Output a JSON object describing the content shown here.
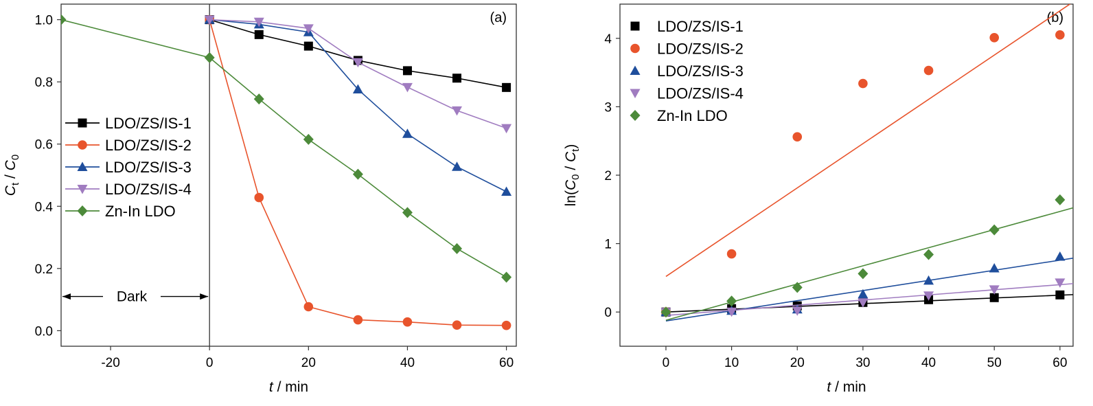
{
  "chart_data": [
    {
      "type": "line",
      "panel_label": "(a)",
      "xlabel": {
        "italic": "t",
        "rest": " / min"
      },
      "ylabel": {
        "text": "C",
        "sub1": "t",
        "mid": " / ",
        "text2": "C",
        "sub2": "0"
      },
      "xlim": [
        -30,
        62
      ],
      "ylim": [
        -0.05,
        1.05
      ],
      "xticks": [
        -20,
        0,
        20,
        40,
        60
      ],
      "yticks": [
        "0.0",
        "0.2",
        "0.4",
        "0.6",
        "0.8",
        "1.0"
      ],
      "legend_position": "center-left",
      "annotation": "Dark",
      "dark_range": [
        -30,
        0
      ],
      "series": [
        {
          "name": "LDO/ZS/IS-1",
          "color": "#000000",
          "marker": "square",
          "x": [
            0,
            10,
            20,
            30,
            40,
            50,
            60
          ],
          "y": [
            1.0,
            0.952,
            0.915,
            0.869,
            0.836,
            0.812,
            0.782
          ]
        },
        {
          "name": "LDO/ZS/IS-2",
          "color": "#e8542c",
          "marker": "circle",
          "x": [
            0,
            10,
            20,
            30,
            40,
            50,
            60
          ],
          "y": [
            1.0,
            0.428,
            0.077,
            0.035,
            0.028,
            0.018,
            0.017
          ]
        },
        {
          "name": "LDO/ZS/IS-3",
          "color": "#1f4e9c",
          "marker": "triangle-up",
          "x": [
            0,
            10,
            20,
            30,
            40,
            50,
            60
          ],
          "y": [
            1.0,
            0.985,
            0.96,
            0.776,
            0.633,
            0.527,
            0.447
          ]
        },
        {
          "name": "LDO/ZS/IS-4",
          "color": "#a07cc0",
          "marker": "triangle-down",
          "x": [
            0,
            10,
            20,
            30,
            40,
            50,
            60
          ],
          "y": [
            1.0,
            0.993,
            0.972,
            0.863,
            0.783,
            0.708,
            0.651
          ]
        },
        {
          "name": "Zn-In LDO",
          "color": "#4c8a3a",
          "marker": "diamond",
          "x": [
            -30,
            0,
            10,
            20,
            30,
            40,
            50,
            60
          ],
          "y": [
            1.0,
            0.878,
            0.745,
            0.615,
            0.503,
            0.38,
            0.264,
            0.172
          ]
        }
      ]
    },
    {
      "type": "scatter",
      "panel_label": "(b)",
      "xlabel": {
        "italic": "t",
        "rest": " / min"
      },
      "ylabel": {
        "pre": "ln(",
        "text": "C",
        "sub1": "0",
        "mid": " / ",
        "text2": "C",
        "sub2": "t",
        "post": ")"
      },
      "xlim": [
        -7,
        62
      ],
      "ylim": [
        -0.5,
        4.5
      ],
      "xticks": [
        0,
        10,
        20,
        30,
        40,
        50,
        60
      ],
      "yticks": [
        0,
        1,
        2,
        3,
        4
      ],
      "legend_position": "top-left",
      "series": [
        {
          "name": "LDO/ZS/IS-1",
          "color": "#000000",
          "marker": "square",
          "x": [
            0,
            10,
            20,
            30,
            40,
            50,
            60
          ],
          "y": [
            0,
            0.05,
            0.09,
            0.14,
            0.18,
            0.21,
            0.25
          ],
          "fit": [
            0.0,
            0.0041
          ]
        },
        {
          "name": "LDO/ZS/IS-2",
          "color": "#e8542c",
          "marker": "circle",
          "x": [
            0,
            10,
            20,
            30,
            40,
            50,
            60
          ],
          "y": [
            0,
            0.85,
            2.56,
            3.34,
            3.53,
            4.01,
            4.05
          ],
          "fit": [
            0.52,
            0.0647
          ]
        },
        {
          "name": "LDO/ZS/IS-3",
          "color": "#1f4e9c",
          "marker": "triangle-up",
          "x": [
            0,
            10,
            20,
            30,
            40,
            50,
            60
          ],
          "y": [
            0,
            0.02,
            0.04,
            0.26,
            0.46,
            0.64,
            0.81
          ],
          "fit": [
            -0.13,
            0.0148
          ]
        },
        {
          "name": "LDO/ZS/IS-4",
          "color": "#a07cc0",
          "marker": "triangle-down",
          "x": [
            0,
            10,
            20,
            30,
            40,
            50,
            60
          ],
          "y": [
            0,
            0.005,
            0.02,
            0.14,
            0.24,
            0.33,
            0.43
          ],
          "fit": [
            -0.05,
            0.0075
          ]
        },
        {
          "name": "Zn-In LDO",
          "color": "#4c8a3a",
          "marker": "diamond",
          "x": [
            0,
            10,
            20,
            30,
            40,
            50,
            60
          ],
          "y": [
            0,
            0.16,
            0.36,
            0.56,
            0.84,
            1.2,
            1.64
          ],
          "fit": [
            -0.12,
            0.0265
          ]
        }
      ]
    }
  ]
}
